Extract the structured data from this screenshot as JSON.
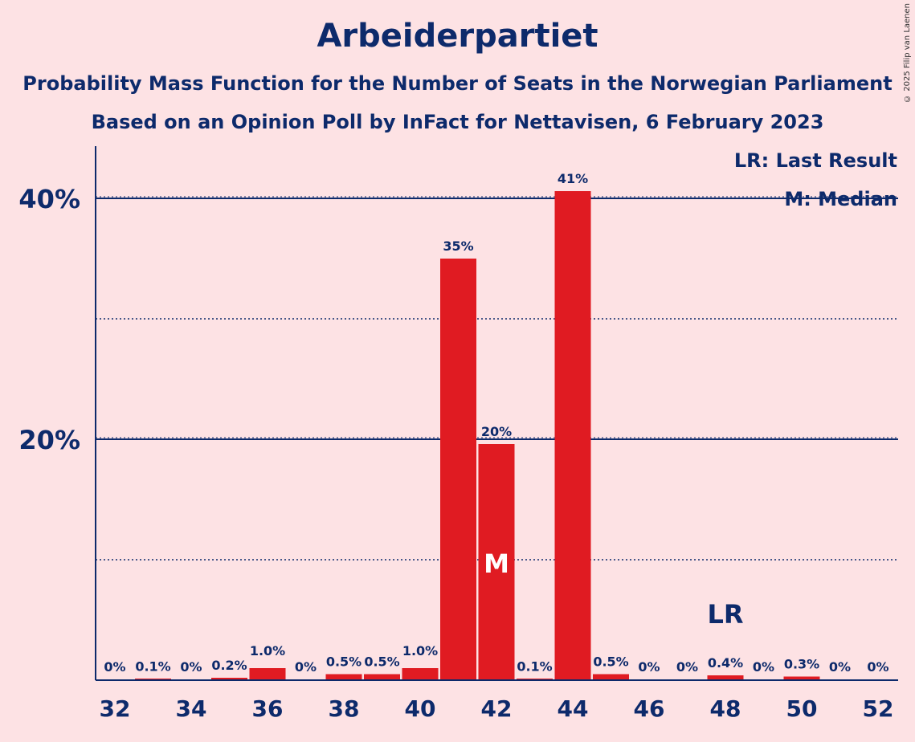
{
  "copyright": "© 2025 Filip van Laenen",
  "chart_data": {
    "type": "bar",
    "title": "Arbeiderpartiet",
    "subtitle": "Probability Mass Function for the Number of Seats in the Norwegian Parliament",
    "subtitle2": "Based on an Opinion Poll by InFact for Nettavisen, 6 February 2023",
    "x": [
      32,
      33,
      34,
      35,
      36,
      37,
      38,
      39,
      40,
      41,
      42,
      43,
      44,
      45,
      46,
      47,
      48,
      49,
      50,
      51,
      52
    ],
    "values": [
      0,
      0.1,
      0,
      0.2,
      1.0,
      0,
      0.5,
      0.5,
      1.0,
      35,
      19.6,
      0.1,
      40.6,
      0.5,
      0,
      0,
      0.4,
      0,
      0.3,
      0,
      0
    ],
    "data_labels": [
      "0%",
      "0.1%",
      "0%",
      "0.2%",
      "1.0%",
      "0%",
      "0.5%",
      "0.5%",
      "1.0%",
      "35%",
      "20%",
      "0.1%",
      "41%",
      "0.5%",
      "0%",
      "0%",
      "0.4%",
      "0%",
      "0.3%",
      "0%",
      "0%"
    ],
    "x_tick_labels": [
      "32",
      "34",
      "36",
      "38",
      "40",
      "42",
      "44",
      "46",
      "48",
      "50",
      "52"
    ],
    "y_tick_labels": [
      "20%",
      "40%"
    ],
    "ylim": [
      0,
      44
    ],
    "grid_major": [
      20,
      40
    ],
    "grid_minor": [
      10,
      30
    ],
    "median_seat": 42,
    "median_label": "M",
    "last_result_seat": 48,
    "last_result_label": "LR",
    "legend": [
      "LR: Last Result",
      "M: Median"
    ],
    "bar_color": "#e01b22",
    "text_color": "#0d2a6b",
    "background": "#fde2e4"
  }
}
